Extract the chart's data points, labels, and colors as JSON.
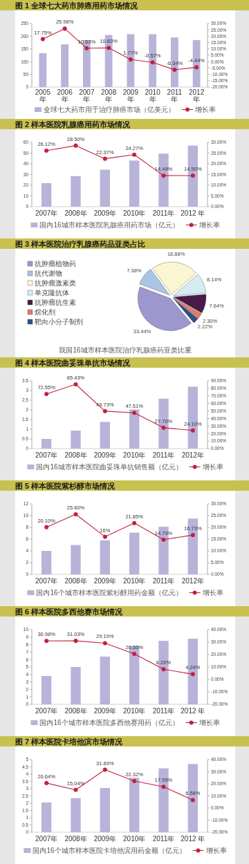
{
  "chart_data": [
    {
      "type": "bar",
      "title": "图 1 全球七大药市肺癌用药市场情况",
      "categories": [
        "2005年",
        "2006年",
        "2007年",
        "2008年",
        "2009年",
        "2010年",
        "2011年",
        "2012年"
      ],
      "series": [
        {
          "name": "全球七大药市用于治疗肺癌市场（亿美元）",
          "type": "bar",
          "color": "#b7b3d9",
          "values": [
            133,
            168,
            185,
            205,
            208,
            208,
            195,
            185
          ]
        },
        {
          "name": "增长率",
          "type": "line",
          "axis": "y2",
          "color": "#c4203c",
          "values": [
            17.75,
            25.98,
            10.53,
            10.83,
            1.77,
            -0.57,
            -6.34,
            -4.44
          ],
          "value_labels": [
            "17.75%",
            "25.98%",
            "10.53%",
            "10.83%",
            "1.77%",
            "-0.57%",
            "-6.34%",
            "-4.44%"
          ]
        }
      ],
      "ylim": [
        0,
        250
      ],
      "yticks": [
        0,
        50,
        100,
        150,
        200,
        250
      ],
      "y2lim": [
        -20,
        30
      ],
      "y2ticks": [
        {
          "value": -20,
          "label": "-20.00%"
        },
        {
          "value": -15,
          "label": "-15.00%"
        },
        {
          "value": -10,
          "label": "-10.00%"
        },
        {
          "value": -5,
          "label": "-5.00%"
        },
        {
          "value": 0,
          "label": "0.00%"
        },
        {
          "value": 5,
          "label": "5.00%"
        },
        {
          "value": 10,
          "label": "10.00%"
        },
        {
          "value": 15,
          "label": "15.00%"
        },
        {
          "value": 20,
          "label": "20.00%"
        },
        {
          "value": 25,
          "label": "25.00%"
        },
        {
          "value": 30,
          "label": "30.00%"
        }
      ],
      "legend": "bottom",
      "marker": "circle"
    },
    {
      "type": "bar",
      "title": "图 2 样本医院乳腺癌用药市场情况",
      "categories": [
        "2007年",
        "2008年",
        "2009年",
        "2010年",
        "2011年",
        "2012 年"
      ],
      "series": [
        {
          "name": "国内16城市样本医院乳腺癌用药市场（亿元）",
          "type": "bar",
          "color": "#b7b3d9",
          "values": [
            22,
            28.5,
            34.5,
            43,
            49.5,
            57
          ]
        },
        {
          "name": "增长率",
          "type": "line",
          "axis": "y2",
          "color": "#c4203c",
          "values": [
            26.12,
            28.5,
            22.37,
            24.27,
            14.49,
            14.5
          ],
          "value_labels": [
            "26.12%",
            "28.50%",
            "22.37%",
            "24.27%",
            "14.49%",
            "14.50%"
          ]
        }
      ],
      "ylim": [
        0,
        60
      ],
      "yticks": [
        0,
        10,
        20,
        30,
        40,
        50,
        60
      ],
      "y2lim": [
        0,
        30
      ],
      "y2ticks": [
        {
          "value": 0,
          "label": "0.00%"
        },
        {
          "value": 5,
          "label": "5.00%"
        },
        {
          "value": 10,
          "label": "10.00%"
        },
        {
          "value": 15,
          "label": "15.00%"
        },
        {
          "value": 20,
          "label": "20.00%"
        },
        {
          "value": 25,
          "label": "25.00%"
        },
        {
          "value": 30,
          "label": "30.00%"
        }
      ],
      "legend": "bottom",
      "marker": "circle"
    },
    {
      "type": "pie",
      "title": "图 3 样本医院治疗乳腺癌药品亚类占比",
      "categories": [
        "抗肿瘤植物药",
        "抗代谢物",
        "抗肿瘤激素类",
        "单克隆抗体",
        "抗肿瘤抗生素",
        "烷化剂",
        "靶向小分子制剂"
      ],
      "values": [
        33.44,
        7.38,
        18.88,
        8.14,
        7.64,
        2.3,
        2.22
      ],
      "value_labels": [
        "33.44%",
        "7.38%",
        "18.88%",
        "8.14%",
        "7.64%",
        "2.30%",
        "2.22%"
      ],
      "colors": [
        "#9c97cc",
        "#a9c4e4",
        "#fbf6d2",
        "#d6ebf2",
        "#4a1a48",
        "#e07b6a",
        "#2e4f86"
      ],
      "legend": "left",
      "annotations": [
        "我国16城市样本医院治疗乳腺癌药亚类比重"
      ]
    },
    {
      "type": "bar",
      "title": "图 4 样本医院曲妥珠单抗市场情况",
      "categories": [
        "2007年",
        "2008年",
        "2009年",
        "2010年",
        "2011年",
        "2012年"
      ],
      "series": [
        {
          "name": "国内16城市样本医院曲妥珠单抗销售额（亿元）",
          "type": "bar",
          "color": "#b7b3d9",
          "values": [
            0.5,
            0.93,
            1.38,
            2.02,
            2.58,
            3.2
          ]
        },
        {
          "name": "增长率",
          "type": "line",
          "axis": "y2",
          "color": "#c4203c",
          "values": [
            72.55,
            85.43,
            49.73,
            47.51,
            27.7,
            24.1
          ],
          "value_labels": [
            "72.55%",
            "85.43%",
            "49.73%",
            "47.51%",
            "27.70%",
            "24.10%"
          ]
        }
      ],
      "ylim": [
        0,
        3.5
      ],
      "yticks": [
        0,
        0.5,
        1,
        1.5,
        2,
        2.5,
        3,
        3.5
      ],
      "y2lim": [
        0,
        90
      ],
      "y2ticks": [
        {
          "value": 0,
          "label": "0.00%"
        },
        {
          "value": 10,
          "label": "10.00%"
        },
        {
          "value": 20,
          "label": "20.00%"
        },
        {
          "value": 30,
          "label": "30.00%"
        },
        {
          "value": 40,
          "label": "40.00%"
        },
        {
          "value": 50,
          "label": "50.00%"
        },
        {
          "value": 60,
          "label": "60.00%"
        },
        {
          "value": 70,
          "label": "70.00%"
        },
        {
          "value": 80,
          "label": "80.00%"
        },
        {
          "value": 90,
          "label": "90.00%"
        }
      ],
      "legend": "bottom",
      "marker": "circle"
    },
    {
      "type": "bar",
      "title": "图 5 样本医院紫杉醇市场情况",
      "categories": [
        "2007年",
        "2008年",
        "2009年",
        "2010年",
        "2011年",
        "2012年"
      ],
      "series": [
        {
          "name": "国内16个城市样本医院紫杉醇用药金额（亿元）",
          "type": "bar",
          "color": "#b7b3d9",
          "values": [
            4.0,
            5.0,
            5.8,
            7.1,
            8.1,
            9.5
          ]
        },
        {
          "name": "增长率",
          "type": "line",
          "axis": "y2",
          "color": "#c4203c",
          "values": [
            20.1,
            25.6,
            16,
            21.85,
            14.79,
            16.73
          ],
          "value_labels": [
            "20.10%",
            "25.60%",
            "16%",
            "21.85%",
            "14.79%",
            "16.73%"
          ]
        }
      ],
      "ylim": [
        0,
        12
      ],
      "yticks": [
        0,
        2,
        4,
        6,
        8,
        10,
        12
      ],
      "y2lim": [
        0,
        30
      ],
      "y2ticks": [
        {
          "value": 0,
          "label": "0.00%"
        },
        {
          "value": 5,
          "label": "5.00%"
        },
        {
          "value": 10,
          "label": "10.00%"
        },
        {
          "value": 15,
          "label": "15.00%"
        },
        {
          "value": 20,
          "label": "20.00%"
        },
        {
          "value": 25,
          "label": "25.00%"
        },
        {
          "value": 30,
          "label": "30.00%"
        }
      ],
      "legend": "bottom",
      "marker": "circle"
    },
    {
      "type": "bar",
      "title": "图 6 样本医院多西他赛市场情况",
      "categories": [
        "2007年",
        "2008年",
        "2009年",
        "2010年",
        "2011年",
        "2012 年"
      ],
      "series": [
        {
          "name": "国内16个城市样本医院多西他赛用药（亿元）",
          "type": "bar",
          "color": "#b7b3d9",
          "values": [
            3.8,
            5.0,
            6.4,
            7.8,
            8.5,
            8.8
          ]
        },
        {
          "name": "增长率",
          "type": "line",
          "axis": "y2",
          "color": "#c4203c",
          "values": [
            30.98,
            31.03,
            29.19,
            20.55,
            8.2,
            4.24
          ],
          "value_labels": [
            "30.98%",
            "31.03%",
            "29.19%",
            "20.55%",
            "8.20%",
            "4.24%"
          ]
        }
      ],
      "ylim": [
        0,
        10
      ],
      "yticks": [
        0,
        1,
        2,
        3,
        4,
        5,
        6,
        7,
        8,
        9,
        10
      ],
      "y2lim": [
        -20,
        40
      ],
      "y2ticks": [
        {
          "value": -20,
          "label": "-20.00%"
        },
        {
          "value": -10,
          "label": "-10.00%"
        },
        {
          "value": 0,
          "label": "0.00%"
        },
        {
          "value": 10,
          "label": "10.00%"
        },
        {
          "value": 20,
          "label": "20.00%"
        },
        {
          "value": 30,
          "label": "30.00%"
        },
        {
          "value": 40,
          "label": "40.00%"
        }
      ],
      "legend": "bottom",
      "marker": "circle"
    },
    {
      "type": "bar",
      "title": "图 7 样本医院卡培他滨市场情况",
      "categories": [
        "2007年",
        "2008年",
        "2009年",
        "2010年",
        "2011年",
        "2012 年"
      ],
      "series": [
        {
          "name": "国内16个城市样本医院卡培他滨用药金额（亿元）",
          "type": "bar",
          "color": "#b7b3d9",
          "values": [
            2.05,
            2.35,
            3.05,
            3.75,
            4.4,
            4.7
          ]
        },
        {
          "name": "增长率",
          "type": "line",
          "axis": "y2",
          "color": "#c4203c",
          "values": [
            20.64,
            15.04,
            31.69,
            22.32,
            17.55,
            6.58
          ],
          "value_labels": [
            "20.64%",
            "15.04%",
            "31.69%",
            "22.32%",
            "17.55%",
            "6.58%"
          ]
        }
      ],
      "ylim": [
        0,
        5
      ],
      "yticks": [
        0,
        0.5,
        1,
        1.5,
        2,
        2.5,
        3,
        3.5,
        4,
        4.5,
        5
      ],
      "y2lim": [
        -20,
        40
      ],
      "y2ticks": [
        {
          "value": -20,
          "label": "-20.00%"
        },
        {
          "value": -10,
          "label": "-10.00%"
        },
        {
          "value": 0,
          "label": "0.00%"
        },
        {
          "value": 10,
          "label": "10.00%"
        },
        {
          "value": 20,
          "label": "20.00%"
        },
        {
          "value": 30,
          "label": "30.00%"
        },
        {
          "value": 40,
          "label": "40.00%"
        }
      ],
      "legend": "bottom",
      "marker": "circle"
    }
  ]
}
